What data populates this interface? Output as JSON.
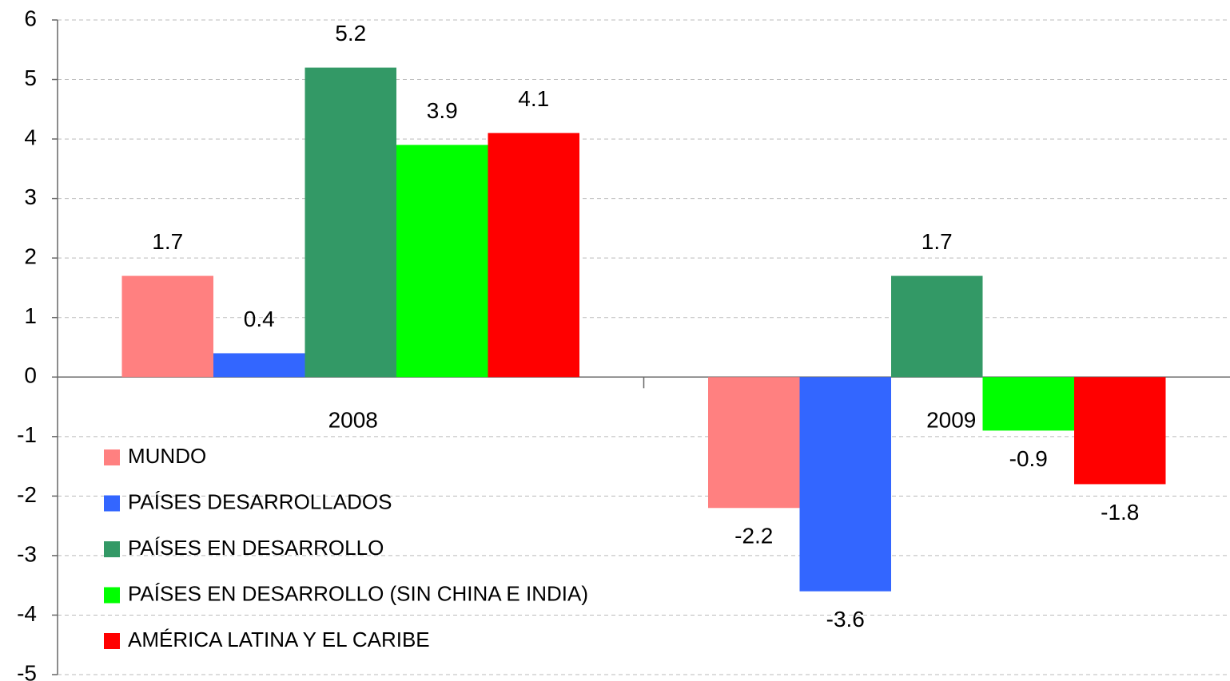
{
  "chart_data": {
    "type": "bar",
    "categories": [
      "2008",
      "2009"
    ],
    "series": [
      {
        "name": "MUNDO",
        "color": "#ff8080",
        "values": [
          1.7,
          -2.2
        ]
      },
      {
        "name": "PAÍSES DESARROLLADOS",
        "color": "#3366ff",
        "values": [
          0.4,
          -3.6
        ]
      },
      {
        "name": "PAÍSES EN DESARROLLO",
        "color": "#339966",
        "values": [
          5.2,
          1.7
        ]
      },
      {
        "name": "PAÍSES EN DESARROLLO (SIN CHINA E INDIA)",
        "color": "#00ff00",
        "values": [
          3.9,
          -0.9
        ]
      },
      {
        "name": "AMÉRICA LATINA Y EL CARIBE",
        "color": "#ff0000",
        "values": [
          4.1,
          -1.8
        ]
      }
    ],
    "ylim": [
      -5,
      6
    ],
    "yticks": [
      -5,
      -4,
      -3,
      -2,
      -1,
      0,
      1,
      2,
      3,
      4,
      5,
      6
    ],
    "grid": true,
    "legend": "lower left"
  }
}
